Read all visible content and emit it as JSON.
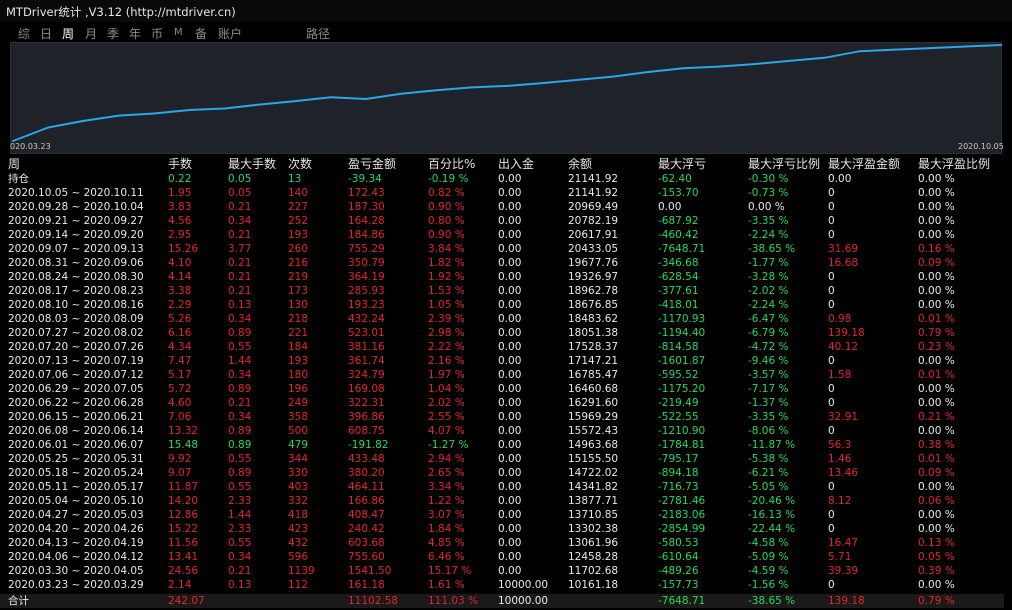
{
  "window": {
    "title": "MTDriver统计 ,V3.12 (http://mtdriver.cn)"
  },
  "tabs": [
    {
      "label": "综",
      "active": false
    },
    {
      "label": "日",
      "active": false
    },
    {
      "label": "周",
      "active": true
    },
    {
      "label": "月",
      "active": false
    },
    {
      "label": "季",
      "active": false
    },
    {
      "label": "年",
      "active": false
    },
    {
      "label": "币",
      "active": false
    },
    {
      "label": "M",
      "active": false
    },
    {
      "label": "备",
      "active": false
    },
    {
      "label": "账户",
      "active": false
    },
    {
      "label": "路径",
      "active": false
    }
  ],
  "chart_data": {
    "type": "line",
    "x_start_label": "020.03.23",
    "x_end_label": "2020.10.05",
    "line_color": "#29a7e6",
    "background": "#1f2228",
    "x": [
      "2020.03.23",
      "2020.03.30",
      "2020.04.06",
      "2020.04.13",
      "2020.04.20",
      "2020.04.27",
      "2020.05.04",
      "2020.05.11",
      "2020.05.18",
      "2020.05.25",
      "2020.06.01",
      "2020.06.08",
      "2020.06.15",
      "2020.06.22",
      "2020.06.29",
      "2020.07.06",
      "2020.07.13",
      "2020.07.20",
      "2020.07.27",
      "2020.08.03",
      "2020.08.10",
      "2020.08.17",
      "2020.08.24",
      "2020.08.31",
      "2020.09.07",
      "2020.09.14",
      "2020.09.21",
      "2020.09.28",
      "2020.10.05"
    ],
    "values": [
      10161.18,
      11702.68,
      12458.28,
      13061.96,
      13302.38,
      13710.85,
      13877.71,
      14341.82,
      14722.02,
      15155.5,
      14963.68,
      15572.43,
      15969.29,
      16291.6,
      16460.68,
      16785.47,
      17147.21,
      17528.37,
      18051.38,
      18483.62,
      18676.85,
      18962.78,
      19326.97,
      19677.76,
      20433.05,
      20617.91,
      20782.19,
      20969.49,
      21141.92
    ]
  },
  "table": {
    "headers": [
      "周",
      "手数",
      "最大手数",
      "次数",
      "盈亏金额",
      "百分比%",
      "出入金",
      "余额",
      "最大浮亏",
      "最大浮亏比例",
      "最大浮盈金额",
      "最大浮盈比例"
    ],
    "holdings": {
      "label": "持仓",
      "lots": "0.22",
      "max_lots": "0.05",
      "count": "13",
      "pnl": "-39.34",
      "pct": "-0.19 %",
      "deposit": "0.00",
      "balance": "21141.92",
      "max_float_loss": "-62.40",
      "max_float_loss_pct": "-0.30 %",
      "max_float_profit": "0.00",
      "max_float_profit_pct": "0.00 %"
    },
    "rows": [
      {
        "week": "2020.10.05 ~ 2020.10.11",
        "lots": "1.95",
        "max_lots": "0.05",
        "count": "140",
        "pnl": "172.43",
        "pct": "0.82 %",
        "deposit": "0.00",
        "balance": "21141.92",
        "max_float_loss": "-153.70",
        "max_float_loss_pct": "-0.73 %",
        "max_float_profit": "0",
        "max_float_profit_pct": "0.00 %"
      },
      {
        "week": "2020.09.28 ~ 2020.10.04",
        "lots": "3.83",
        "max_lots": "0.21",
        "count": "227",
        "pnl": "187.30",
        "pct": "0.90 %",
        "deposit": "0.00",
        "balance": "20969.49",
        "max_float_loss": "0.00",
        "max_float_loss_pct": "0.00 %",
        "max_float_profit": "0",
        "max_float_profit_pct": "0.00 %"
      },
      {
        "week": "2020.09.21 ~ 2020.09.27",
        "lots": "4.56",
        "max_lots": "0.34",
        "count": "252",
        "pnl": "164.28",
        "pct": "0.80 %",
        "deposit": "0.00",
        "balance": "20782.19",
        "max_float_loss": "-687.92",
        "max_float_loss_pct": "-3.35 %",
        "max_float_profit": "0",
        "max_float_profit_pct": "0.00 %"
      },
      {
        "week": "2020.09.14 ~ 2020.09.20",
        "lots": "2.95",
        "max_lots": "0.21",
        "count": "193",
        "pnl": "184.86",
        "pct": "0.90 %",
        "deposit": "0.00",
        "balance": "20617.91",
        "max_float_loss": "-460.42",
        "max_float_loss_pct": "-2.24 %",
        "max_float_profit": "0",
        "max_float_profit_pct": "0.00 %"
      },
      {
        "week": "2020.09.07 ~ 2020.09.13",
        "lots": "15.26",
        "max_lots": "3.77",
        "count": "260",
        "pnl": "755.29",
        "pct": "3.84 %",
        "deposit": "0.00",
        "balance": "20433.05",
        "max_float_loss": "-7648.71",
        "max_float_loss_pct": "-38.65 %",
        "max_float_profit": "31.69",
        "max_float_profit_pct": "0.16 %"
      },
      {
        "week": "2020.08.31 ~ 2020.09.06",
        "lots": "4.10",
        "max_lots": "0.21",
        "count": "216",
        "pnl": "350.79",
        "pct": "1.82 %",
        "deposit": "0.00",
        "balance": "19677.76",
        "max_float_loss": "-346.68",
        "max_float_loss_pct": "-1.77 %",
        "max_float_profit": "16.68",
        "max_float_profit_pct": "0.09 %"
      },
      {
        "week": "2020.08.24 ~ 2020.08.30",
        "lots": "4.14",
        "max_lots": "0.21",
        "count": "219",
        "pnl": "364.19",
        "pct": "1.92 %",
        "deposit": "0.00",
        "balance": "19326.97",
        "max_float_loss": "-628.54",
        "max_float_loss_pct": "-3.28 %",
        "max_float_profit": "0",
        "max_float_profit_pct": "0.00 %"
      },
      {
        "week": "2020.08.17 ~ 2020.08.23",
        "lots": "3.38",
        "max_lots": "0.21",
        "count": "173",
        "pnl": "285.93",
        "pct": "1.53 %",
        "deposit": "0.00",
        "balance": "18962.78",
        "max_float_loss": "-377.61",
        "max_float_loss_pct": "-2.02 %",
        "max_float_profit": "0",
        "max_float_profit_pct": "0.00 %"
      },
      {
        "week": "2020.08.10 ~ 2020.08.16",
        "lots": "2.29",
        "max_lots": "0.13",
        "count": "130",
        "pnl": "193.23",
        "pct": "1.05 %",
        "deposit": "0.00",
        "balance": "18676.85",
        "max_float_loss": "-418.01",
        "max_float_loss_pct": "-2.24 %",
        "max_float_profit": "0",
        "max_float_profit_pct": "0.00 %"
      },
      {
        "week": "2020.08.03 ~ 2020.08.09",
        "lots": "5.26",
        "max_lots": "0.34",
        "count": "218",
        "pnl": "432.24",
        "pct": "2.39 %",
        "deposit": "0.00",
        "balance": "18483.62",
        "max_float_loss": "-1170.93",
        "max_float_loss_pct": "-6.47 %",
        "max_float_profit": "0.98",
        "max_float_profit_pct": "0.01 %"
      },
      {
        "week": "2020.07.27 ~ 2020.08.02",
        "lots": "6.16",
        "max_lots": "0.89",
        "count": "221",
        "pnl": "523.01",
        "pct": "2.98 %",
        "deposit": "0.00",
        "balance": "18051.38",
        "max_float_loss": "-1194.40",
        "max_float_loss_pct": "-6.79 %",
        "max_float_profit": "139.18",
        "max_float_profit_pct": "0.79 %"
      },
      {
        "week": "2020.07.20 ~ 2020.07.26",
        "lots": "4.34",
        "max_lots": "0.55",
        "count": "184",
        "pnl": "381.16",
        "pct": "2.22 %",
        "deposit": "0.00",
        "balance": "17528.37",
        "max_float_loss": "-814.58",
        "max_float_loss_pct": "-4.72 %",
        "max_float_profit": "40.12",
        "max_float_profit_pct": "0.23 %"
      },
      {
        "week": "2020.07.13 ~ 2020.07.19",
        "lots": "7.47",
        "max_lots": "1.44",
        "count": "193",
        "pnl": "361.74",
        "pct": "2.16 %",
        "deposit": "0.00",
        "balance": "17147.21",
        "max_float_loss": "-1601.87",
        "max_float_loss_pct": "-9.46 %",
        "max_float_profit": "0",
        "max_float_profit_pct": "0.00 %"
      },
      {
        "week": "2020.07.06 ~ 2020.07.12",
        "lots": "5.17",
        "max_lots": "0.34",
        "count": "180",
        "pnl": "324.79",
        "pct": "1.97 %",
        "deposit": "0.00",
        "balance": "16785.47",
        "max_float_loss": "-595.52",
        "max_float_loss_pct": "-3.57 %",
        "max_float_profit": "1.58",
        "max_float_profit_pct": "0.01 %"
      },
      {
        "week": "2020.06.29 ~ 2020.07.05",
        "lots": "5.72",
        "max_lots": "0.89",
        "count": "196",
        "pnl": "169.08",
        "pct": "1.04 %",
        "deposit": "0.00",
        "balance": "16460.68",
        "max_float_loss": "-1175.20",
        "max_float_loss_pct": "-7.17 %",
        "max_float_profit": "0",
        "max_float_profit_pct": "0.00 %"
      },
      {
        "week": "2020.06.22 ~ 2020.06.28",
        "lots": "4.60",
        "max_lots": "0.21",
        "count": "249",
        "pnl": "322.31",
        "pct": "2.02 %",
        "deposit": "0.00",
        "balance": "16291.60",
        "max_float_loss": "-219.49",
        "max_float_loss_pct": "-1.37 %",
        "max_float_profit": "0",
        "max_float_profit_pct": "0.00 %"
      },
      {
        "week": "2020.06.15 ~ 2020.06.21",
        "lots": "7.06",
        "max_lots": "0.34",
        "count": "358",
        "pnl": "396.86",
        "pct": "2.55 %",
        "deposit": "0.00",
        "balance": "15969.29",
        "max_float_loss": "-522.55",
        "max_float_loss_pct": "-3.35 %",
        "max_float_profit": "32.91",
        "max_float_profit_pct": "0.21 %"
      },
      {
        "week": "2020.06.08 ~ 2020.06.14",
        "lots": "13.32",
        "max_lots": "0.89",
        "count": "500",
        "pnl": "608.75",
        "pct": "4.07 %",
        "deposit": "0.00",
        "balance": "15572.43",
        "max_float_loss": "-1210.90",
        "max_float_loss_pct": "-8.06 %",
        "max_float_profit": "0",
        "max_float_profit_pct": "0.00 %"
      },
      {
        "week": "2020.06.01 ~ 2020.06.07",
        "lots": "15.48",
        "max_lots": "0.89",
        "count": "479",
        "pnl": "-191.82",
        "pct": "-1.27 %",
        "deposit": "0.00",
        "balance": "14963.68",
        "max_float_loss": "-1784.81",
        "max_float_loss_pct": "-11.87 %",
        "max_float_profit": "56.3",
        "max_float_profit_pct": "0.38 %"
      },
      {
        "week": "2020.05.25 ~ 2020.05.31",
        "lots": "9.92",
        "max_lots": "0.55",
        "count": "344",
        "pnl": "433.48",
        "pct": "2.94 %",
        "deposit": "0.00",
        "balance": "15155.50",
        "max_float_loss": "-795.17",
        "max_float_loss_pct": "-5.38 %",
        "max_float_profit": "1.46",
        "max_float_profit_pct": "0.01 %"
      },
      {
        "week": "2020.05.18 ~ 2020.05.24",
        "lots": "9.07",
        "max_lots": "0.89",
        "count": "330",
        "pnl": "380.20",
        "pct": "2.65 %",
        "deposit": "0.00",
        "balance": "14722.02",
        "max_float_loss": "-894.18",
        "max_float_loss_pct": "-6.21 %",
        "max_float_profit": "13.46",
        "max_float_profit_pct": "0.09 %"
      },
      {
        "week": "2020.05.11 ~ 2020.05.17",
        "lots": "11.87",
        "max_lots": "0.55",
        "count": "403",
        "pnl": "464.11",
        "pct": "3.34 %",
        "deposit": "0.00",
        "balance": "14341.82",
        "max_float_loss": "-716.73",
        "max_float_loss_pct": "-5.05 %",
        "max_float_profit": "0",
        "max_float_profit_pct": "0.00 %"
      },
      {
        "week": "2020.05.04 ~ 2020.05.10",
        "lots": "14.20",
        "max_lots": "2.33",
        "count": "332",
        "pnl": "166.86",
        "pct": "1.22 %",
        "deposit": "0.00",
        "balance": "13877.71",
        "max_float_loss": "-2781.46",
        "max_float_loss_pct": "-20.46 %",
        "max_float_profit": "8.12",
        "max_float_profit_pct": "0.06 %"
      },
      {
        "week": "2020.04.27 ~ 2020.05.03",
        "lots": "12.86",
        "max_lots": "1.44",
        "count": "418",
        "pnl": "408.47",
        "pct": "3.07 %",
        "deposit": "0.00",
        "balance": "13710.85",
        "max_float_loss": "-2183.06",
        "max_float_loss_pct": "-16.13 %",
        "max_float_profit": "0",
        "max_float_profit_pct": "0.00 %"
      },
      {
        "week": "2020.04.20 ~ 2020.04.26",
        "lots": "15.22",
        "max_lots": "2.33",
        "count": "423",
        "pnl": "240.42",
        "pct": "1.84 %",
        "deposit": "0.00",
        "balance": "13302.38",
        "max_float_loss": "-2854.99",
        "max_float_loss_pct": "-22.44 %",
        "max_float_profit": "0",
        "max_float_profit_pct": "0.00 %"
      },
      {
        "week": "2020.04.13 ~ 2020.04.19",
        "lots": "11.56",
        "max_lots": "0.55",
        "count": "432",
        "pnl": "603.68",
        "pct": "4.85 %",
        "deposit": "0.00",
        "balance": "13061.96",
        "max_float_loss": "-580.53",
        "max_float_loss_pct": "-4.58 %",
        "max_float_profit": "16.47",
        "max_float_profit_pct": "0.13 %"
      },
      {
        "week": "2020.04.06 ~ 2020.04.12",
        "lots": "13.41",
        "max_lots": "0.34",
        "count": "596",
        "pnl": "755.60",
        "pct": "6.46 %",
        "deposit": "0.00",
        "balance": "12458.28",
        "max_float_loss": "-610.64",
        "max_float_loss_pct": "-5.09 %",
        "max_float_profit": "5.71",
        "max_float_profit_pct": "0.05 %"
      },
      {
        "week": "2020.03.30 ~ 2020.04.05",
        "lots": "24.56",
        "max_lots": "0.21",
        "count": "1139",
        "pnl": "1541.50",
        "pct": "15.17 %",
        "deposit": "0.00",
        "balance": "11702.68",
        "max_float_loss": "-489.26",
        "max_float_loss_pct": "-4.59 %",
        "max_float_profit": "39.39",
        "max_float_profit_pct": "0.39 %"
      },
      {
        "week": "2020.03.23 ~ 2020.03.29",
        "lots": "2.14",
        "max_lots": "0.13",
        "count": "112",
        "pnl": "161.18",
        "pct": "1.61 %",
        "deposit": "10000.00",
        "balance": "10161.18",
        "max_float_loss": "-157.73",
        "max_float_loss_pct": "-1.56 %",
        "max_float_profit": "0",
        "max_float_profit_pct": "0.00 %"
      }
    ],
    "total": {
      "label": "合计",
      "lots": "242.07",
      "max_lots": "",
      "count": "",
      "pnl": "11102.58",
      "pct": "111.03 %",
      "deposit": "10000.00",
      "balance": "",
      "max_float_loss": "-7648.71",
      "max_float_loss_pct": "-38.65 %",
      "max_float_profit": "139.18",
      "max_float_profit_pct": "0.79 %"
    }
  },
  "colors": {
    "positive": "#e0262b",
    "negative": "#25d95a",
    "neutral": "#e8e8e8"
  }
}
